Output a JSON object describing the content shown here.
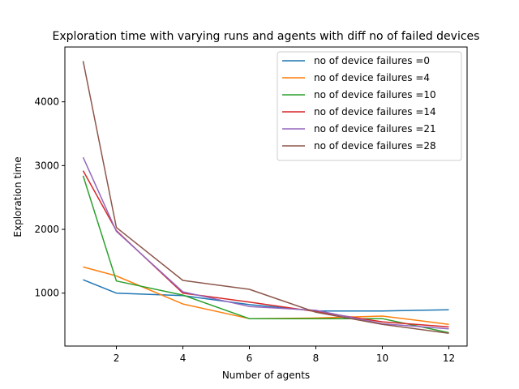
{
  "chart_data": {
    "type": "line",
    "title": "Exploration time with varying runs and agents with diff no of failed devices",
    "xlabel": "Number of agents",
    "ylabel": "Exploration time",
    "xlim": [
      0.45,
      12.55
    ],
    "ylim": [
      170,
      4860
    ],
    "xticks": [
      2,
      4,
      6,
      8,
      10,
      12
    ],
    "yticks": [
      1000,
      2000,
      3000,
      4000
    ],
    "grid": false,
    "legend_position": "top-right",
    "x": [
      1,
      2,
      4,
      6,
      8,
      10,
      12
    ],
    "series": [
      {
        "name": "no of device failures =0",
        "color": "#1f77b4",
        "values": [
          1210,
          1000,
          960,
          820,
          720,
          720,
          740
        ]
      },
      {
        "name": "no of device failures =4",
        "color": "#ff7f0e",
        "values": [
          1410,
          1270,
          830,
          600,
          610,
          640,
          510
        ]
      },
      {
        "name": "no of device failures =10",
        "color": "#2ca02c",
        "values": [
          2840,
          1190,
          970,
          600,
          600,
          600,
          380
        ]
      },
      {
        "name": "no of device failures =14",
        "color": "#d62728",
        "values": [
          2920,
          1980,
          1000,
          860,
          710,
          550,
          470
        ]
      },
      {
        "name": "no of device failures =21",
        "color": "#9467bd",
        "values": [
          3130,
          1970,
          1020,
          790,
          730,
          520,
          440
        ]
      },
      {
        "name": "no of device failures =28",
        "color": "#8c564b",
        "values": [
          4640,
          2030,
          1200,
          1060,
          700,
          510,
          370
        ]
      }
    ]
  }
}
